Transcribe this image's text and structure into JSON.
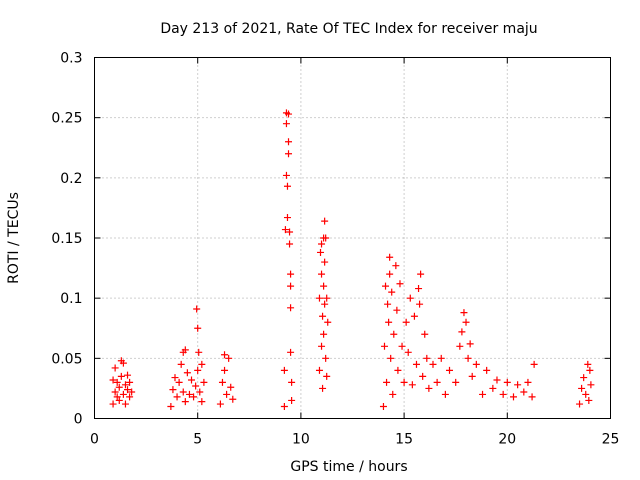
{
  "chart_data": {
    "type": "scatter",
    "title": "Day 213 of 2021, Rate Of TEC Index for receiver maju",
    "xlabel": "GPS time / hours",
    "ylabel": "ROTI / TECUs",
    "xlim": [
      0,
      25
    ],
    "ylim": [
      0,
      0.3
    ],
    "xticks": [
      "0",
      "5",
      "10",
      "15",
      "20",
      "25"
    ],
    "yticks": [
      "0",
      "0.05",
      "0.1",
      "0.15",
      "0.2",
      "0.25",
      "0.3"
    ],
    "grid": true,
    "marker": "+",
    "color": "#ff0000",
    "series": [
      {
        "values": [
          [
            0.9,
            0.012
          ],
          [
            0.9,
            0.032
          ],
          [
            1.0,
            0.022
          ],
          [
            1.0,
            0.042
          ],
          [
            1.1,
            0.018
          ],
          [
            1.1,
            0.03
          ],
          [
            1.2,
            0.015
          ],
          [
            1.2,
            0.026
          ],
          [
            1.3,
            0.035
          ],
          [
            1.3,
            0.048
          ],
          [
            1.4,
            0.02
          ],
          [
            1.4,
            0.046
          ],
          [
            1.5,
            0.028
          ],
          [
            1.5,
            0.012
          ],
          [
            1.6,
            0.024
          ],
          [
            1.6,
            0.036
          ],
          [
            1.7,
            0.018
          ],
          [
            1.7,
            0.03
          ],
          [
            1.8,
            0.022
          ],
          [
            3.7,
            0.01
          ],
          [
            3.8,
            0.024
          ],
          [
            3.9,
            0.034
          ],
          [
            4.0,
            0.018
          ],
          [
            4.1,
            0.03
          ],
          [
            4.2,
            0.045
          ],
          [
            4.3,
            0.022
          ],
          [
            4.3,
            0.055
          ],
          [
            4.4,
            0.014
          ],
          [
            4.4,
            0.057
          ],
          [
            4.5,
            0.038
          ],
          [
            4.6,
            0.02
          ],
          [
            4.7,
            0.032
          ],
          [
            4.8,
            0.018
          ],
          [
            4.9,
            0.027
          ],
          [
            4.95,
            0.091
          ],
          [
            5.0,
            0.075
          ],
          [
            5.0,
            0.04
          ],
          [
            5.05,
            0.055
          ],
          [
            5.1,
            0.022
          ],
          [
            5.2,
            0.045
          ],
          [
            5.2,
            0.014
          ],
          [
            5.3,
            0.03
          ],
          [
            6.1,
            0.012
          ],
          [
            6.2,
            0.03
          ],
          [
            6.3,
            0.04
          ],
          [
            6.3,
            0.053
          ],
          [
            6.4,
            0.02
          ],
          [
            6.5,
            0.05
          ],
          [
            6.6,
            0.026
          ],
          [
            6.7,
            0.016
          ],
          [
            9.2,
            0.01
          ],
          [
            9.2,
            0.04
          ],
          [
            9.25,
            0.157
          ],
          [
            9.3,
            0.254
          ],
          [
            9.3,
            0.245
          ],
          [
            9.3,
            0.202
          ],
          [
            9.35,
            0.193
          ],
          [
            9.35,
            0.167
          ],
          [
            9.4,
            0.253
          ],
          [
            9.4,
            0.23
          ],
          [
            9.4,
            0.22
          ],
          [
            9.45,
            0.145
          ],
          [
            9.45,
            0.155
          ],
          [
            9.5,
            0.12
          ],
          [
            9.5,
            0.11
          ],
          [
            9.5,
            0.092
          ],
          [
            9.5,
            0.055
          ],
          [
            9.55,
            0.03
          ],
          [
            9.55,
            0.015
          ],
          [
            10.9,
            0.04
          ],
          [
            10.9,
            0.1
          ],
          [
            10.95,
            0.138
          ],
          [
            11.0,
            0.145
          ],
          [
            11.0,
            0.12
          ],
          [
            11.0,
            0.06
          ],
          [
            11.05,
            0.085
          ],
          [
            11.05,
            0.025
          ],
          [
            11.1,
            0.15
          ],
          [
            11.1,
            0.11
          ],
          [
            11.1,
            0.07
          ],
          [
            11.15,
            0.164
          ],
          [
            11.15,
            0.13
          ],
          [
            11.15,
            0.095
          ],
          [
            11.2,
            0.15
          ],
          [
            11.2,
            0.05
          ],
          [
            11.25,
            0.1
          ],
          [
            11.25,
            0.035
          ],
          [
            11.3,
            0.08
          ],
          [
            14.0,
            0.01
          ],
          [
            14.05,
            0.06
          ],
          [
            14.1,
            0.11
          ],
          [
            14.15,
            0.03
          ],
          [
            14.2,
            0.095
          ],
          [
            14.25,
            0.08
          ],
          [
            14.3,
            0.134
          ],
          [
            14.3,
            0.12
          ],
          [
            14.35,
            0.05
          ],
          [
            14.4,
            0.105
          ],
          [
            14.45,
            0.02
          ],
          [
            14.5,
            0.07
          ],
          [
            14.6,
            0.127
          ],
          [
            14.65,
            0.09
          ],
          [
            14.7,
            0.04
          ],
          [
            14.8,
            0.112
          ],
          [
            14.9,
            0.06
          ],
          [
            15.0,
            0.03
          ],
          [
            15.1,
            0.08
          ],
          [
            15.2,
            0.055
          ],
          [
            15.3,
            0.1
          ],
          [
            15.4,
            0.028
          ],
          [
            15.5,
            0.085
          ],
          [
            15.6,
            0.045
          ],
          [
            15.7,
            0.108
          ],
          [
            15.75,
            0.095
          ],
          [
            15.8,
            0.12
          ],
          [
            15.9,
            0.035
          ],
          [
            16.0,
            0.07
          ],
          [
            16.1,
            0.05
          ],
          [
            16.2,
            0.025
          ],
          [
            16.4,
            0.045
          ],
          [
            16.6,
            0.03
          ],
          [
            16.8,
            0.05
          ],
          [
            17.0,
            0.02
          ],
          [
            17.2,
            0.04
          ],
          [
            17.5,
            0.03
          ],
          [
            17.7,
            0.06
          ],
          [
            17.8,
            0.072
          ],
          [
            17.9,
            0.088
          ],
          [
            18.0,
            0.08
          ],
          [
            18.1,
            0.05
          ],
          [
            18.2,
            0.062
          ],
          [
            18.3,
            0.035
          ],
          [
            18.5,
            0.045
          ],
          [
            18.8,
            0.02
          ],
          [
            19.0,
            0.04
          ],
          [
            19.3,
            0.025
          ],
          [
            19.5,
            0.032
          ],
          [
            19.8,
            0.02
          ],
          [
            20.0,
            0.03
          ],
          [
            20.3,
            0.018
          ],
          [
            20.5,
            0.028
          ],
          [
            20.8,
            0.022
          ],
          [
            21.0,
            0.03
          ],
          [
            21.2,
            0.018
          ],
          [
            21.3,
            0.045
          ],
          [
            23.5,
            0.012
          ],
          [
            23.6,
            0.025
          ],
          [
            23.7,
            0.034
          ],
          [
            23.8,
            0.02
          ],
          [
            23.9,
            0.045
          ],
          [
            23.95,
            0.015
          ],
          [
            24.0,
            0.04
          ],
          [
            24.05,
            0.028
          ]
        ]
      }
    ]
  }
}
